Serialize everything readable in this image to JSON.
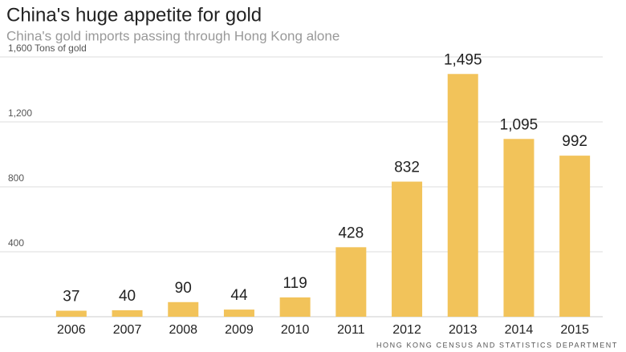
{
  "chart_data": {
    "type": "bar",
    "title": "China's huge appetite for gold",
    "subtitle": "China's gold imports passing through Hong Kong alone",
    "source": "HONG KONG CENSUS AND STATISTICS DEPARTMENT",
    "categories": [
      "2006",
      "2007",
      "2008",
      "2009",
      "2010",
      "2011",
      "2012",
      "2013",
      "2014",
      "2015"
    ],
    "values": [
      37,
      40,
      90,
      44,
      119,
      428,
      832,
      1495,
      1095,
      992
    ],
    "value_labels": [
      "37",
      "40",
      "90",
      "44",
      "119",
      "428",
      "832",
      "1,495",
      "1,095",
      "992"
    ],
    "color": "#f2c35a",
    "ylim": [
      0,
      1600
    ],
    "yticks": [
      400,
      800,
      {
        "value": 1200,
        "label": "1,200"
      },
      {
        "value": 1600,
        "label": "1,600 Tons of gold"
      }
    ],
    "grid": true
  }
}
